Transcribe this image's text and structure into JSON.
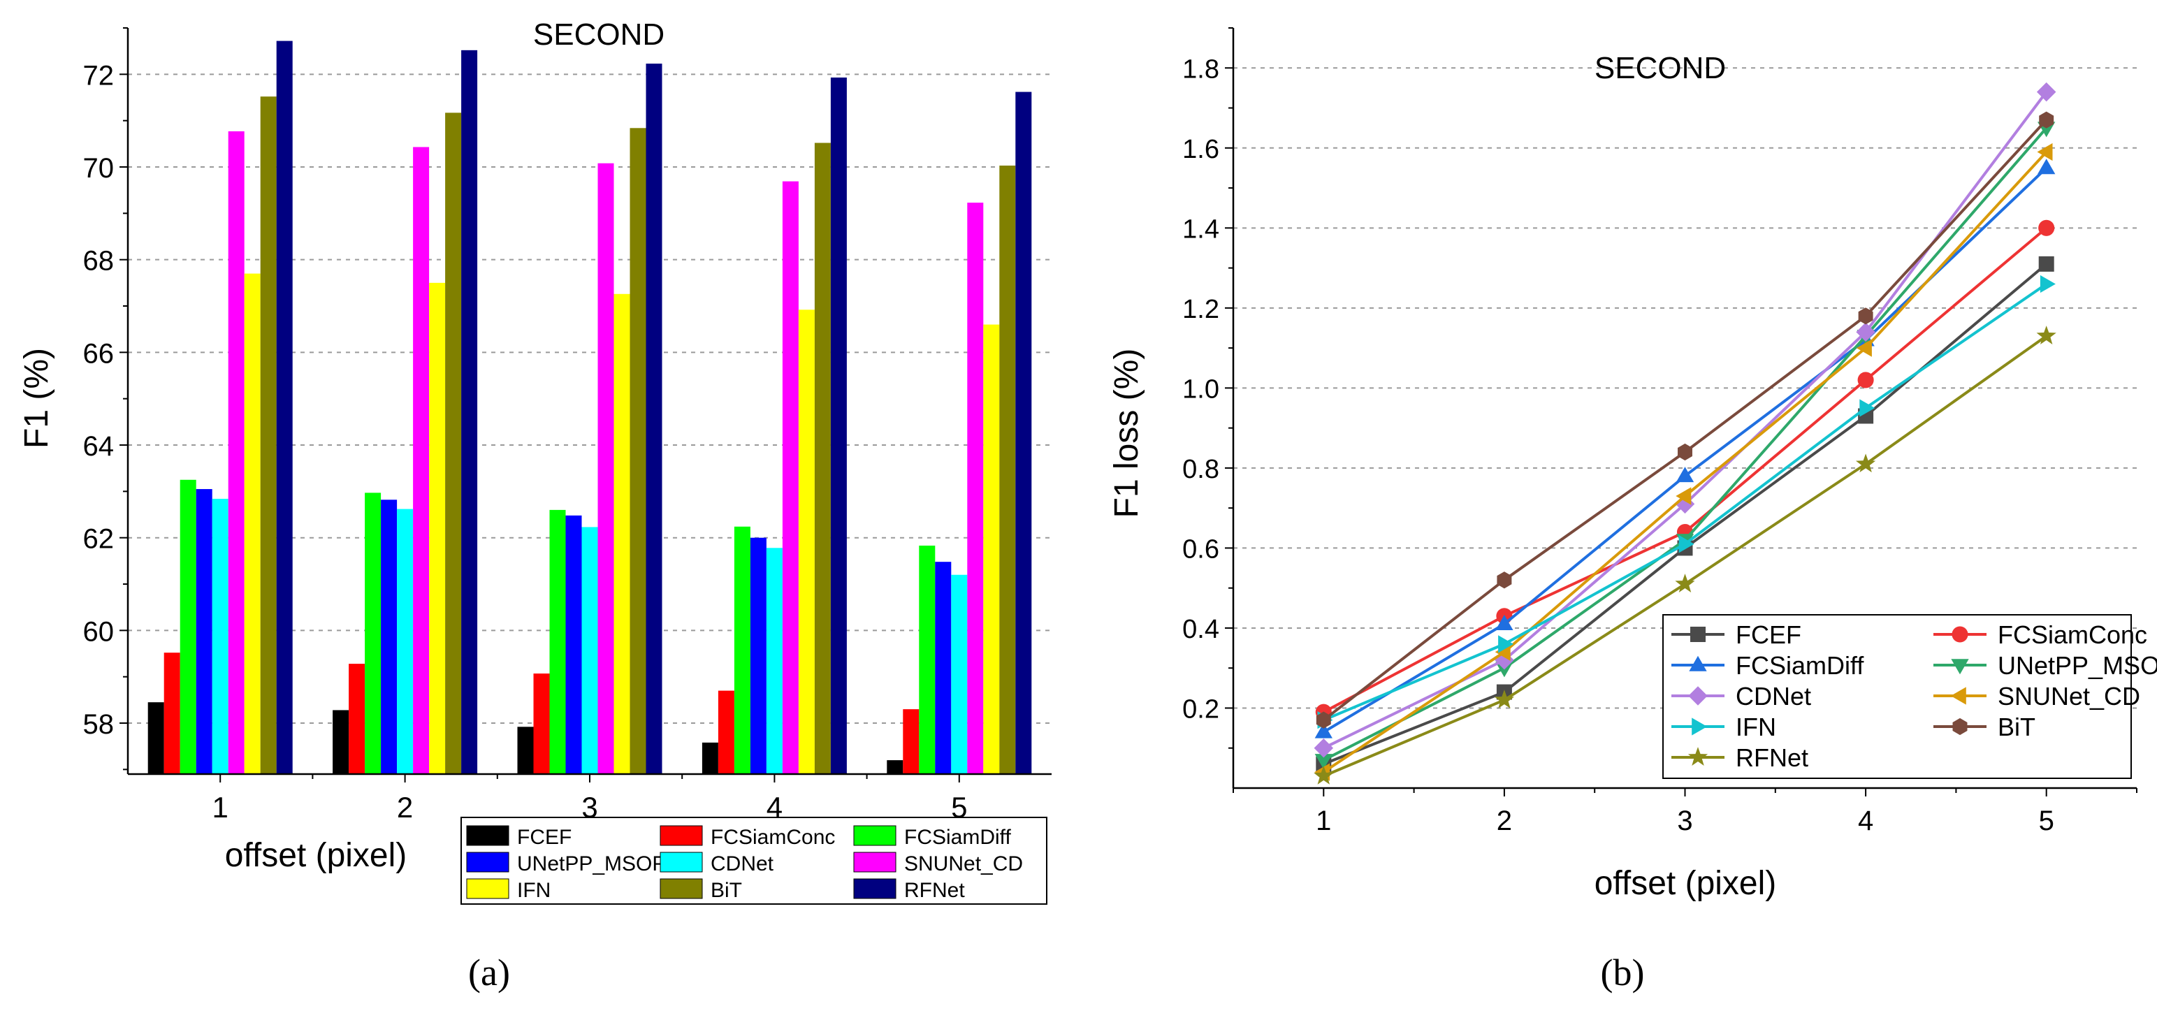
{
  "chart_data": [
    {
      "type": "bar",
      "panel_label": "(a)",
      "title": "SECOND",
      "xlabel": "offset (pixel)",
      "ylabel": "F1 (%)",
      "categories": [
        "1",
        "2",
        "3",
        "4",
        "5"
      ],
      "ylim": [
        56.9,
        73.0
      ],
      "yticks": [
        58,
        60,
        62,
        64,
        66,
        68,
        70,
        72
      ],
      "grid": true,
      "legend_position": "bottom-right",
      "series": [
        {
          "name": "FCEF",
          "color": "#000000",
          "values": [
            58.45,
            58.28,
            57.92,
            57.58,
            57.2
          ]
        },
        {
          "name": "FCSiamConc",
          "color": "#ff0000",
          "values": [
            59.52,
            59.28,
            59.07,
            58.7,
            58.3
          ]
        },
        {
          "name": "FCSiamDiff",
          "color": "#00ff00",
          "values": [
            63.25,
            62.97,
            62.6,
            62.24,
            61.83
          ]
        },
        {
          "name": "UNetPP_MSOF",
          "color": "#0000ff",
          "values": [
            63.05,
            62.82,
            62.48,
            62.0,
            61.48
          ]
        },
        {
          "name": "CDNet",
          "color": "#00ffff",
          "values": [
            62.84,
            62.62,
            62.23,
            61.78,
            61.2
          ]
        },
        {
          "name": "SNUNet_CD",
          "color": "#ff00ff",
          "values": [
            70.77,
            70.43,
            70.08,
            69.69,
            69.23
          ]
        },
        {
          "name": "IFN",
          "color": "#ffff00",
          "values": [
            67.7,
            67.5,
            67.26,
            66.92,
            66.6
          ]
        },
        {
          "name": "BiT",
          "color": "#808000",
          "values": [
            71.52,
            71.17,
            70.84,
            70.52,
            70.03
          ]
        },
        {
          "name": "RFNet",
          "color": "#000080",
          "values": [
            72.72,
            72.52,
            72.23,
            71.93,
            71.62
          ]
        }
      ]
    },
    {
      "type": "line",
      "panel_label": "(b)",
      "title": "SECOND",
      "xlabel": "offset (pixel)",
      "ylabel": "F1 loss (%)",
      "x": [
        1,
        2,
        3,
        4,
        5
      ],
      "xlim": [
        0.5,
        5.5
      ],
      "ylim": [
        0.0,
        1.9
      ],
      "yticks": [
        "0.2",
        "0.4",
        "0.6",
        "0.8",
        "1.0",
        "1.2",
        "1.4",
        "1.6",
        "1.8"
      ],
      "grid": true,
      "legend_position": "bottom-right",
      "series": [
        {
          "name": "FCEF",
          "color": "#4a4a4a",
          "marker": "square",
          "values": [
            0.06,
            0.24,
            0.6,
            0.93,
            1.31
          ]
        },
        {
          "name": "FCSiamConc",
          "color": "#ee3333",
          "marker": "circle",
          "values": [
            0.19,
            0.43,
            0.64,
            1.02,
            1.4
          ]
        },
        {
          "name": "FCSiamDiff",
          "color": "#1f6fe0",
          "marker": "triangle-up",
          "values": [
            0.14,
            0.41,
            0.78,
            1.12,
            1.55
          ]
        },
        {
          "name": "UNetPP_MSOF",
          "color": "#2ea86a",
          "marker": "triangle-down",
          "values": [
            0.07,
            0.3,
            0.62,
            1.13,
            1.65
          ]
        },
        {
          "name": "CDNet",
          "color": "#b27fe0",
          "marker": "diamond",
          "values": [
            0.1,
            0.32,
            0.71,
            1.14,
            1.74
          ]
        },
        {
          "name": "SNUNet_CD",
          "color": "#d99a0a",
          "marker": "triangle-left",
          "values": [
            0.04,
            0.34,
            0.73,
            1.1,
            1.59
          ]
        },
        {
          "name": "IFN",
          "color": "#13c3cf",
          "marker": "triangle-right",
          "values": [
            0.17,
            0.36,
            0.61,
            0.95,
            1.26
          ]
        },
        {
          "name": "BiT",
          "color": "#7a4a3c",
          "marker": "hexagon",
          "values": [
            0.17,
            0.52,
            0.84,
            1.18,
            1.67
          ]
        },
        {
          "name": "RFNet",
          "color": "#8a8a18",
          "marker": "star",
          "values": [
            0.03,
            0.22,
            0.51,
            0.81,
            1.13
          ]
        }
      ]
    }
  ]
}
